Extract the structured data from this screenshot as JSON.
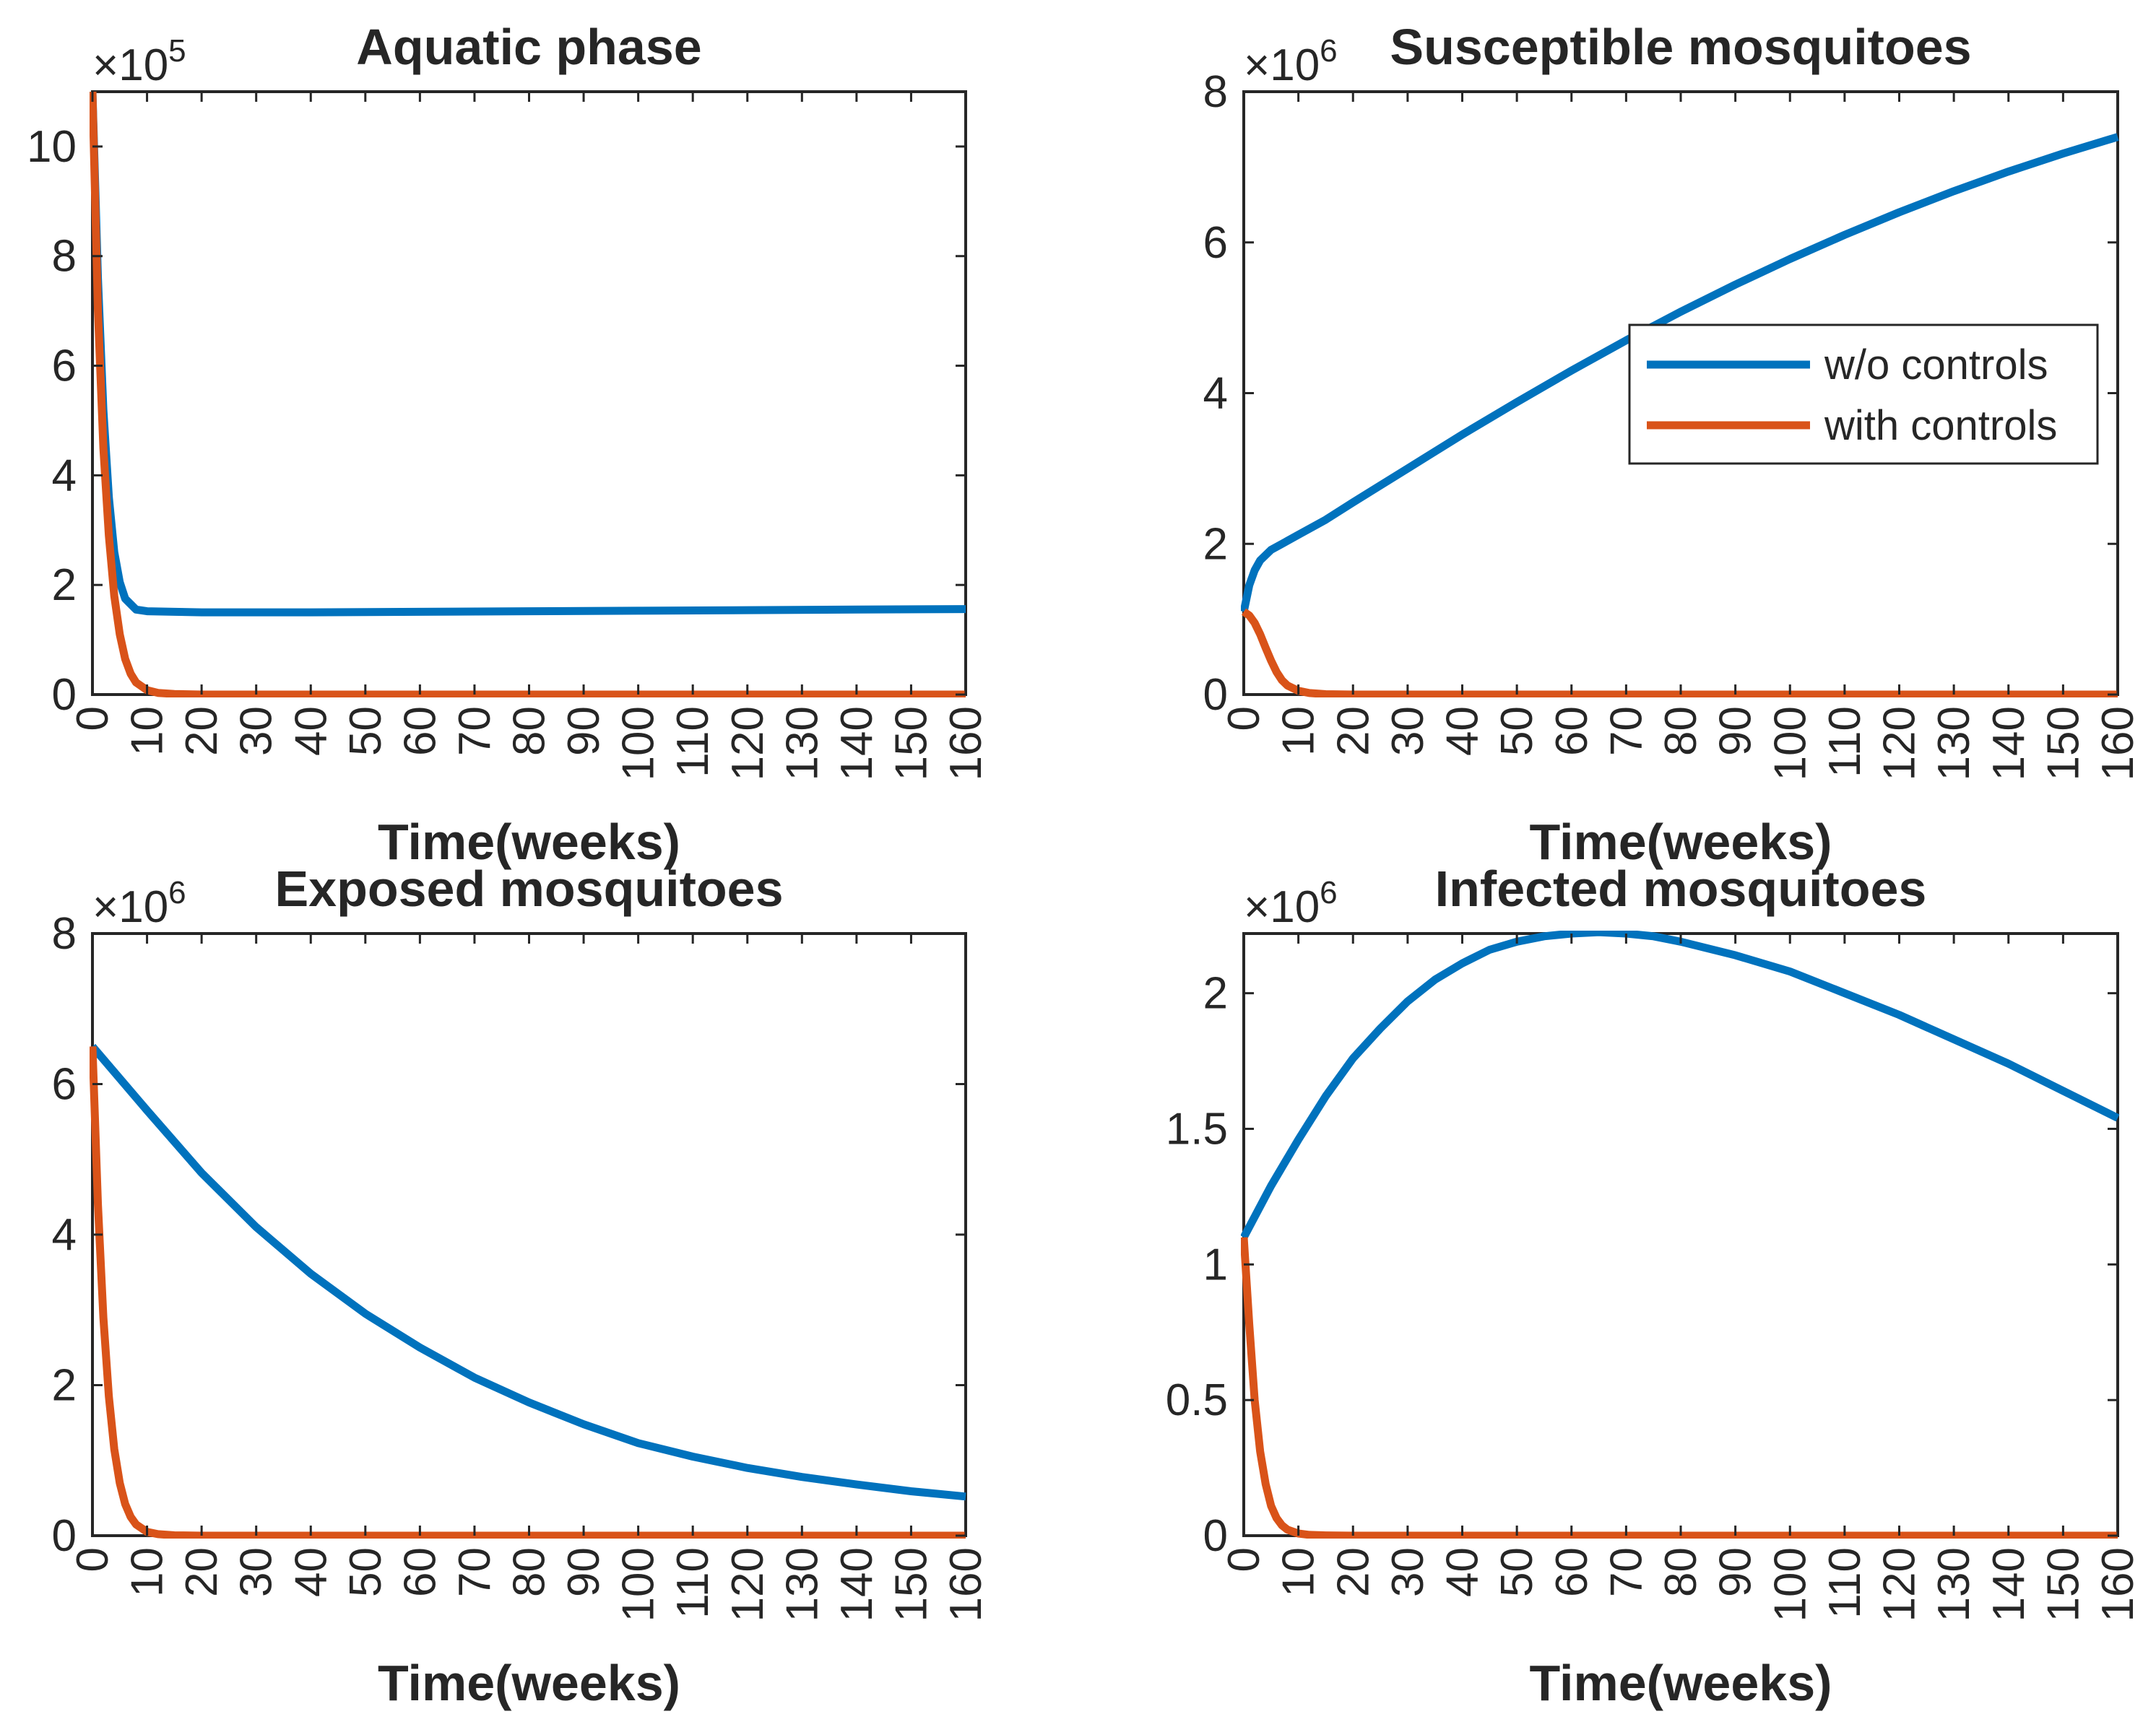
{
  "colors": {
    "without_controls": "#0072BD",
    "with_controls": "#D95319",
    "axis": "#262626"
  },
  "chart_data": [
    {
      "type": "line",
      "title": "Aquatic phase",
      "xlabel": "Time(weeks)",
      "ylabel": "",
      "exponent": {
        "base": "×10",
        "power": "5"
      },
      "xlim": [
        0,
        160
      ],
      "ylim": [
        0,
        11
      ],
      "xticks": [
        0,
        10,
        20,
        30,
        40,
        50,
        60,
        70,
        80,
        90,
        100,
        110,
        120,
        130,
        140,
        150,
        160
      ],
      "xtick_labels": [
        "0",
        "10",
        "20",
        "30",
        "40",
        "50",
        "60",
        "70",
        "80",
        "90",
        "100",
        "110",
        "120",
        "130",
        "140",
        "150",
        "160"
      ],
      "yticks": [
        0,
        2,
        4,
        6,
        8,
        10
      ],
      "ytick_labels": [
        "0",
        "2",
        "4",
        "6",
        "8",
        "10"
      ],
      "series": [
        {
          "name": "w/o controls",
          "x": [
            0,
            1,
            2,
            3,
            4,
            5,
            6,
            8,
            10,
            15,
            20,
            40,
            60,
            80,
            100,
            120,
            140,
            160
          ],
          "values": [
            11,
            7.6,
            5.2,
            3.6,
            2.6,
            2.05,
            1.75,
            1.55,
            1.52,
            1.51,
            1.5,
            1.5,
            1.51,
            1.52,
            1.53,
            1.54,
            1.55,
            1.56
          ]
        },
        {
          "name": "with controls",
          "x": [
            0,
            1,
            2,
            3,
            4,
            5,
            6,
            7,
            8,
            10,
            12,
            15,
            20,
            40,
            80,
            120,
            160
          ],
          "values": [
            11,
            7.0,
            4.5,
            2.9,
            1.8,
            1.1,
            0.65,
            0.38,
            0.22,
            0.08,
            0.03,
            0.01,
            0,
            0,
            0,
            0,
            0
          ]
        }
      ]
    },
    {
      "type": "line",
      "title": "Susceptible mosquitoes",
      "xlabel": "Time(weeks)",
      "ylabel": "",
      "exponent": {
        "base": "×10",
        "power": "6"
      },
      "xlim": [
        0,
        160
      ],
      "ylim": [
        0,
        8
      ],
      "xticks": [
        0,
        10,
        20,
        30,
        40,
        50,
        60,
        70,
        80,
        90,
        100,
        110,
        120,
        130,
        140,
        150,
        160
      ],
      "xtick_labels": [
        "0",
        "10",
        "20",
        "30",
        "40",
        "50",
        "60",
        "70",
        "80",
        "90",
        "100",
        "110",
        "120",
        "130",
        "140",
        "150",
        "160"
      ],
      "yticks": [
        0,
        2,
        4,
        6,
        8
      ],
      "ytick_labels": [
        "0",
        "2",
        "4",
        "6",
        "8"
      ],
      "legend": {
        "position": "upper-right",
        "entries": [
          "w/o controls",
          "with controls"
        ]
      },
      "series": [
        {
          "name": "w/o controls",
          "x": [
            0,
            1,
            2,
            3,
            5,
            7,
            10,
            15,
            20,
            30,
            40,
            50,
            60,
            70,
            80,
            90,
            100,
            110,
            120,
            130,
            140,
            150,
            160
          ],
          "values": [
            1.1,
            1.45,
            1.65,
            1.78,
            1.92,
            2.0,
            2.12,
            2.32,
            2.55,
            3.0,
            3.45,
            3.88,
            4.3,
            4.7,
            5.08,
            5.44,
            5.78,
            6.1,
            6.4,
            6.68,
            6.94,
            7.18,
            7.4
          ]
        },
        {
          "name": "with controls",
          "x": [
            0,
            1,
            2,
            3,
            4,
            5,
            6,
            7,
            8,
            10,
            12,
            15,
            20,
            40,
            80,
            120,
            160
          ],
          "values": [
            1.1,
            1.05,
            0.95,
            0.8,
            0.62,
            0.45,
            0.3,
            0.19,
            0.12,
            0.05,
            0.02,
            0.005,
            0,
            0,
            0,
            0,
            0
          ]
        }
      ]
    },
    {
      "type": "line",
      "title": "Exposed mosquitoes",
      "xlabel": "Time(weeks)",
      "ylabel": "",
      "exponent": {
        "base": "×10",
        "power": "6"
      },
      "xlim": [
        0,
        160
      ],
      "ylim": [
        0,
        8
      ],
      "xticks": [
        0,
        10,
        20,
        30,
        40,
        50,
        60,
        70,
        80,
        90,
        100,
        110,
        120,
        130,
        140,
        150,
        160
      ],
      "xtick_labels": [
        "0",
        "10",
        "20",
        "30",
        "40",
        "50",
        "60",
        "70",
        "80",
        "90",
        "100",
        "110",
        "120",
        "130",
        "140",
        "150",
        "160"
      ],
      "yticks": [
        0,
        2,
        4,
        6,
        8
      ],
      "ytick_labels": [
        "0",
        "2",
        "4",
        "6",
        "8"
      ],
      "series": [
        {
          "name": "w/o controls",
          "x": [
            0,
            10,
            20,
            30,
            40,
            50,
            60,
            70,
            80,
            90,
            100,
            110,
            120,
            130,
            140,
            150,
            160
          ],
          "values": [
            6.5,
            5.65,
            4.82,
            4.1,
            3.48,
            2.95,
            2.5,
            2.1,
            1.77,
            1.48,
            1.23,
            1.05,
            0.9,
            0.78,
            0.68,
            0.59,
            0.52
          ]
        },
        {
          "name": "with controls",
          "x": [
            0,
            1,
            2,
            3,
            4,
            5,
            6,
            7,
            8,
            10,
            12,
            15,
            20,
            40,
            80,
            120,
            160
          ],
          "values": [
            6.5,
            4.4,
            2.9,
            1.85,
            1.15,
            0.7,
            0.42,
            0.25,
            0.15,
            0.05,
            0.02,
            0.005,
            0,
            0,
            0,
            0,
            0
          ]
        }
      ]
    },
    {
      "type": "line",
      "title": "Infected mosquitoes",
      "xlabel": "Time(weeks)",
      "ylabel": "",
      "exponent": {
        "base": "×10",
        "power": "6"
      },
      "xlim": [
        0,
        160
      ],
      "ylim": [
        0,
        2.22
      ],
      "xticks": [
        0,
        10,
        20,
        30,
        40,
        50,
        60,
        70,
        80,
        90,
        100,
        110,
        120,
        130,
        140,
        150,
        160
      ],
      "xtick_labels": [
        "0",
        "10",
        "20",
        "30",
        "40",
        "50",
        "60",
        "70",
        "80",
        "90",
        "100",
        "110",
        "120",
        "130",
        "140",
        "150",
        "160"
      ],
      "yticks": [
        0,
        0.5,
        1,
        1.5,
        2
      ],
      "ytick_labels": [
        "0",
        "0.5",
        "1",
        "1.5",
        "2"
      ],
      "series": [
        {
          "name": "w/o controls",
          "x": [
            0,
            5,
            10,
            15,
            20,
            25,
            30,
            35,
            40,
            45,
            50,
            55,
            60,
            65,
            70,
            75,
            80,
            90,
            100,
            110,
            120,
            130,
            140,
            150,
            160
          ],
          "values": [
            1.1,
            1.29,
            1.46,
            1.62,
            1.76,
            1.87,
            1.97,
            2.05,
            2.11,
            2.16,
            2.19,
            2.21,
            2.22,
            2.225,
            2.22,
            2.21,
            2.19,
            2.14,
            2.08,
            2.0,
            1.92,
            1.83,
            1.74,
            1.64,
            1.54
          ]
        },
        {
          "name": "with controls",
          "x": [
            0,
            1,
            2,
            3,
            4,
            5,
            6,
            7,
            8,
            10,
            12,
            15,
            20,
            40,
            80,
            120,
            160
          ],
          "values": [
            1.1,
            0.78,
            0.5,
            0.31,
            0.19,
            0.11,
            0.065,
            0.038,
            0.022,
            0.008,
            0.003,
            0.001,
            0,
            0,
            0,
            0,
            0
          ]
        }
      ]
    }
  ]
}
